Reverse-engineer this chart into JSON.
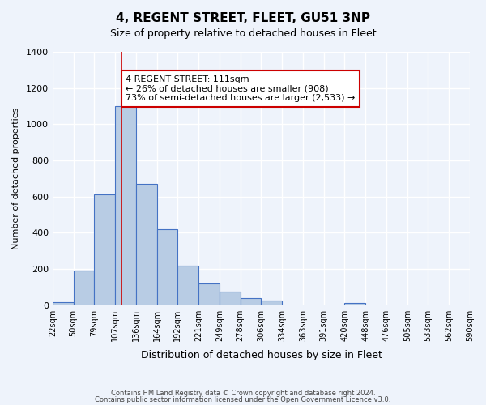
{
  "title": "4, REGENT STREET, FLEET, GU51 3NP",
  "subtitle": "Size of property relative to detached houses in Fleet",
  "xlabel": "Distribution of detached houses by size in Fleet",
  "ylabel": "Number of detached properties",
  "bin_labels": [
    "22sqm",
    "50sqm",
    "79sqm",
    "107sqm",
    "136sqm",
    "164sqm",
    "192sqm",
    "221sqm",
    "249sqm",
    "278sqm",
    "306sqm",
    "334sqm",
    "363sqm",
    "391sqm",
    "420sqm",
    "448sqm",
    "476sqm",
    "505sqm",
    "533sqm",
    "562sqm",
    "590sqm"
  ],
  "bar_values": [
    15,
    190,
    610,
    1100,
    670,
    420,
    220,
    120,
    75,
    40,
    25,
    0,
    0,
    0,
    10,
    0,
    0,
    0,
    0,
    0
  ],
  "bar_color": "#b8cce4",
  "bar_edge_color": "#4472c4",
  "background_color": "#eef3fb",
  "grid_color": "#ffffff",
  "property_line_x": 3.32,
  "annotation_text": "4 REGENT STREET: 111sqm\n← 26% of detached houses are smaller (908)\n73% of semi-detached houses are larger (2,533) →",
  "annotation_box_edge": "#cc0000",
  "annotation_box_face": "#ffffff",
  "footer_line1": "Contains HM Land Registry data © Crown copyright and database right 2024.",
  "footer_line2": "Contains public sector information licensed under the Open Government Licence v3.0.",
  "ylim": [
    0,
    1400
  ],
  "yticks": [
    0,
    200,
    400,
    600,
    800,
    1000,
    1200,
    1400
  ]
}
